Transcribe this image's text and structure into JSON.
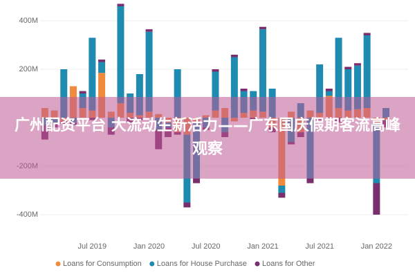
{
  "chart_data": {
    "type": "bar",
    "stacked": true,
    "annotation": "广州配资平台 大流动生新活力——广东国庆假期客流高峰观察",
    "categories": [
      null,
      null,
      null,
      null,
      null,
      "Jul 2019",
      null,
      null,
      null,
      null,
      null,
      "Jan 2020",
      null,
      null,
      null,
      null,
      null,
      "Jul 2020",
      null,
      null,
      null,
      null,
      null,
      "Jan 2021",
      null,
      null,
      null,
      null,
      null,
      "Jul 2021",
      null,
      null,
      null,
      null,
      null,
      "Jan 2022",
      null
    ],
    "series": [
      {
        "name": "Loans for Consumption",
        "color": "#f08a3c",
        "values": [
          40,
          30,
          -15,
          130,
          40,
          30,
          185,
          25,
          60,
          20,
          10,
          25,
          15,
          -20,
          -60,
          -70,
          -20,
          10,
          30,
          40,
          -15,
          20,
          30,
          25,
          -40,
          -280,
          25,
          -60,
          30,
          20,
          90,
          40,
          30,
          35,
          40,
          -20,
          -10
        ]
      },
      {
        "name": "Loans for House Purchase",
        "color": "#1f8bb0",
        "values": [
          -30,
          -20,
          200,
          -20,
          60,
          300,
          45,
          -40,
          400,
          80,
          170,
          330,
          -50,
          -20,
          200,
          -280,
          -230,
          -40,
          160,
          -60,
          250,
          90,
          80,
          340,
          120,
          -30,
          -100,
          60,
          -250,
          200,
          20,
          290,
          170,
          180,
          300,
          -250,
          40
        ]
      },
      {
        "name": "Loans for Other",
        "color": "#7b2e6e",
        "values": [
          -60,
          -20,
          -10,
          -10,
          10,
          -10,
          10,
          -30,
          10,
          -20,
          -10,
          10,
          -80,
          -40,
          -10,
          -20,
          -20,
          -10,
          10,
          -20,
          10,
          10,
          -10,
          10,
          -20,
          -20,
          -10,
          -20,
          -20,
          -10,
          10,
          -20,
          10,
          10,
          10,
          -130,
          -30
        ]
      }
    ],
    "ylim": [
      -460,
      480
    ],
    "yticks": [
      {
        "value": -400,
        "label": "-400M"
      },
      {
        "value": -200,
        "label": "-200M"
      },
      {
        "value": 200,
        "label": "200M"
      },
      {
        "value": 400,
        "label": "400M"
      }
    ],
    "grid": true
  }
}
